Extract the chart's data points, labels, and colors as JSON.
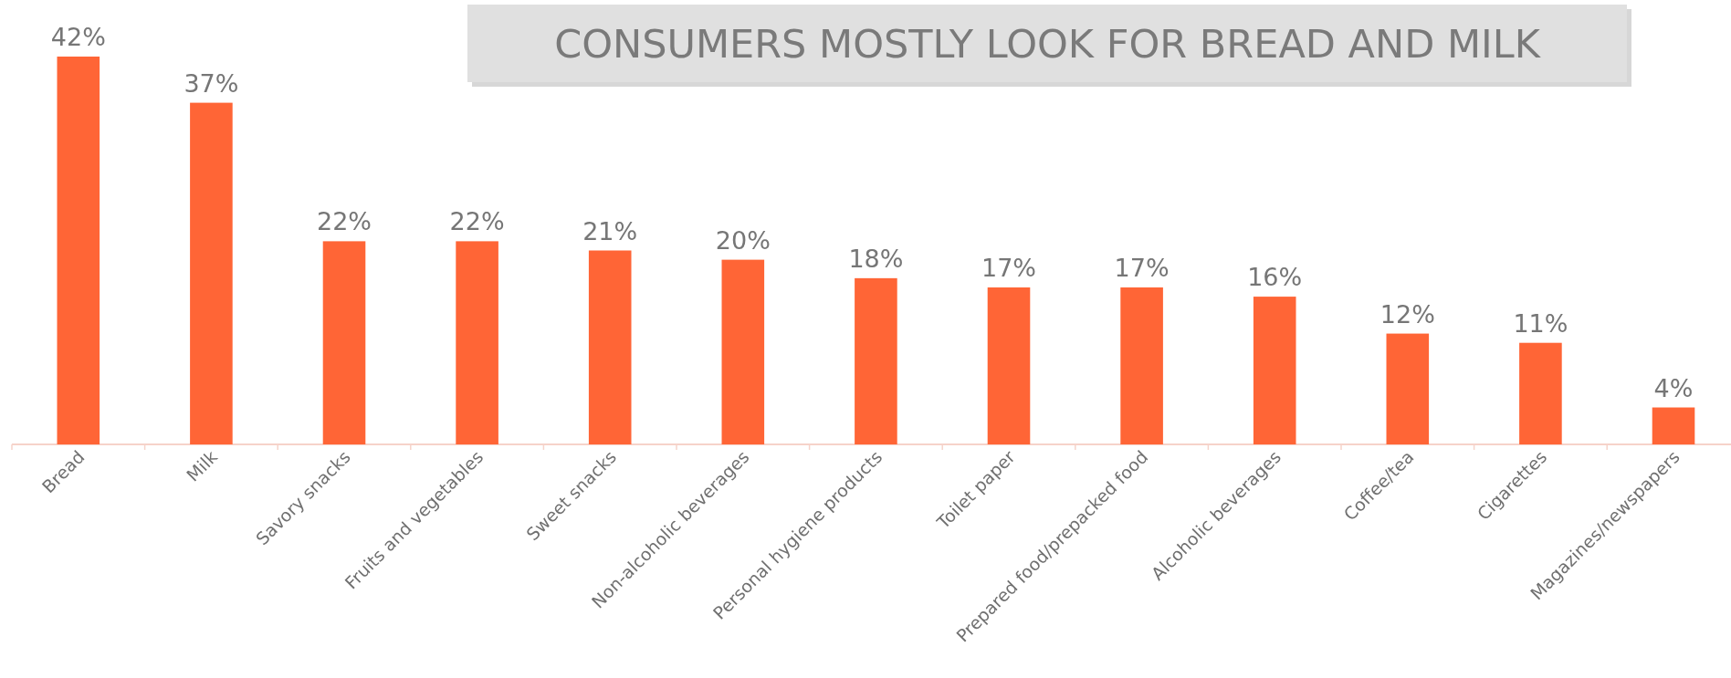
{
  "chart_data": {
    "type": "bar",
    "title": "CONSUMERS MOSTLY LOOK FOR BREAD AND MILK",
    "categories": [
      "Bread",
      "Milk",
      "Savory snacks",
      "Fruits and vegetables",
      "Sweet snacks",
      "Non-alcoholic beverages",
      "Personal hygiene products",
      "Toilet paper",
      "Prepared food/prepacked food",
      "Alcoholic beverages",
      "Coffee/tea",
      "Cigarettes",
      "Magazines/newspapers"
    ],
    "values": [
      42,
      37,
      22,
      22,
      21,
      20,
      18,
      17,
      17,
      16,
      12,
      11,
      4
    ],
    "value_labels": [
      "42%",
      "37%",
      "22%",
      "22%",
      "21%",
      "20%",
      "18%",
      "17%",
      "17%",
      "16%",
      "12%",
      "11%",
      "4%"
    ],
    "color": "#ff6536",
    "grid": false
  }
}
